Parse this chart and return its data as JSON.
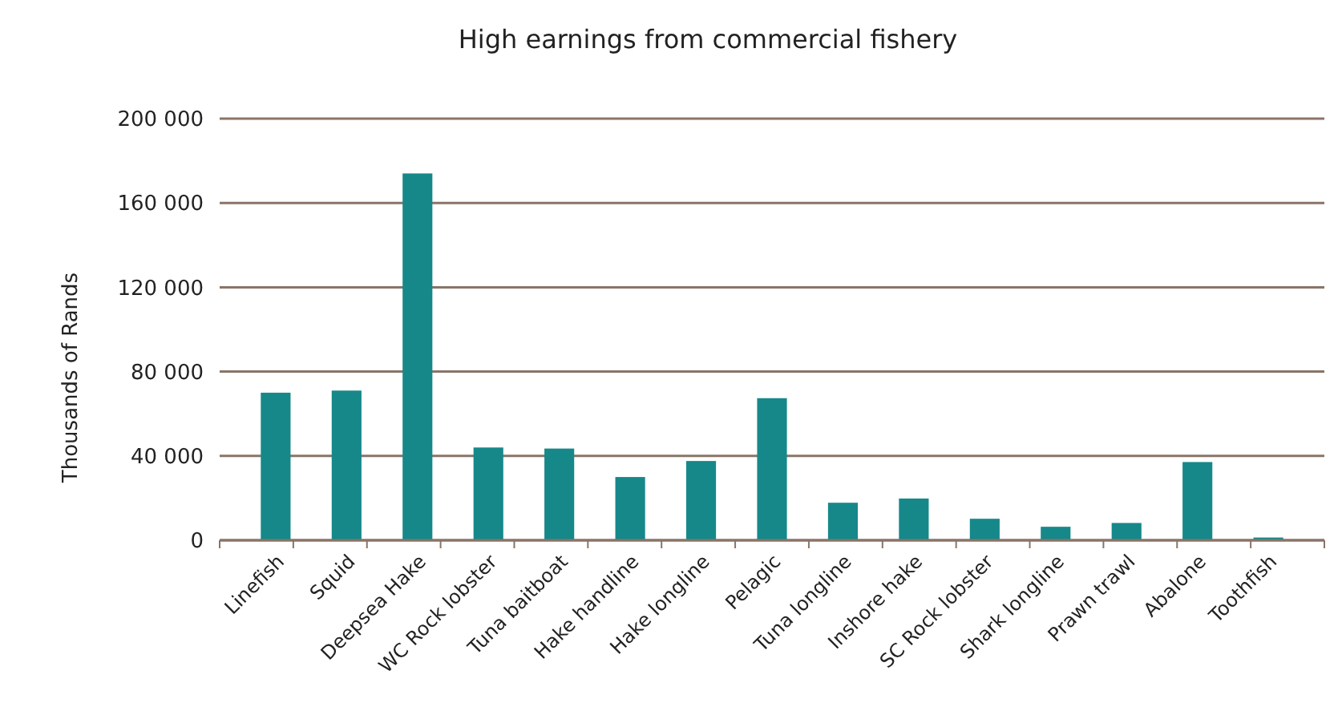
{
  "chart_data": {
    "type": "bar",
    "title": "High earnings from commercial fishery",
    "ylabel": "Thousands of Rands",
    "categories": [
      "Linefish",
      "Squid",
      "Deepsea Hake",
      "WC Rock lobster",
      "Tuna baitboat",
      "Hake handline",
      "Hake longline",
      "Pelagic",
      "Tuna longline",
      "Inshore hake",
      "SC Rock lobster",
      "Shark longline",
      "Prawn trawl",
      "Abalone",
      "Toothfish"
    ],
    "values": [
      70000,
      71000,
      174000,
      44000,
      43500,
      30000,
      37600,
      67400,
      17800,
      19800,
      10200,
      6400,
      8200,
      37100,
      1300
    ],
    "color": "#16888a",
    "ylim": [
      0,
      200000
    ],
    "yticks": [
      {
        "value": 0,
        "label": "0"
      },
      {
        "value": 40000,
        "label": "40 000"
      },
      {
        "value": 80000,
        "label": "80 000"
      },
      {
        "value": 120000,
        "label": "120 000"
      },
      {
        "value": 160000,
        "label": "160 000"
      },
      {
        "value": 200000,
        "label": "200 000"
      }
    ],
    "grid": "y"
  }
}
